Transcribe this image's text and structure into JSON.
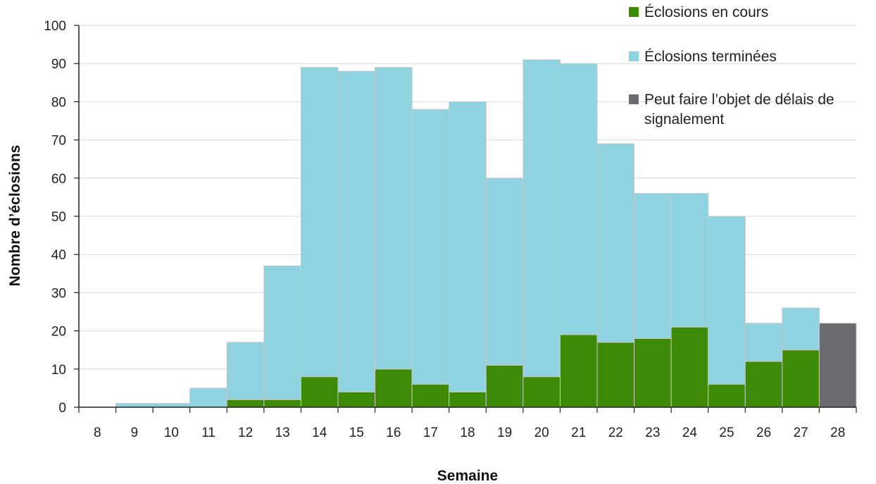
{
  "chart_data": {
    "type": "bar",
    "stacked": true,
    "xlabel": "Semaine",
    "ylabel": "Nombre d’éclosions",
    "ylim": [
      0,
      100
    ],
    "yticks": [
      0,
      10,
      20,
      30,
      40,
      50,
      60,
      70,
      80,
      90,
      100
    ],
    "gridlines": true,
    "legend_position": "top-right",
    "categories": [
      "8",
      "9",
      "10",
      "11",
      "12",
      "13",
      "14",
      "15",
      "16",
      "17",
      "18",
      "19",
      "20",
      "21",
      "22",
      "23",
      "24",
      "25",
      "26",
      "27",
      "28"
    ],
    "series": [
      {
        "name": "Éclosions en cours",
        "color": "#3d8a06",
        "values": [
          0,
          0,
          0,
          0,
          2,
          2,
          8,
          4,
          10,
          6,
          4,
          11,
          8,
          19,
          17,
          18,
          21,
          6,
          12,
          15,
          0
        ]
      },
      {
        "name": "Éclosions terminées",
        "color": "#8ed3df",
        "values": [
          0,
          1,
          1,
          5,
          15,
          35,
          81,
          84,
          79,
          72,
          76,
          49,
          83,
          71,
          52,
          38,
          35,
          44,
          10,
          11,
          0
        ]
      },
      {
        "name": "Peut faire l’objet de délais de signalement",
        "color": "#6b6b6f",
        "values": [
          0,
          0,
          0,
          0,
          0,
          0,
          0,
          0,
          0,
          0,
          0,
          0,
          0,
          0,
          0,
          0,
          0,
          0,
          0,
          0,
          22
        ]
      }
    ]
  }
}
